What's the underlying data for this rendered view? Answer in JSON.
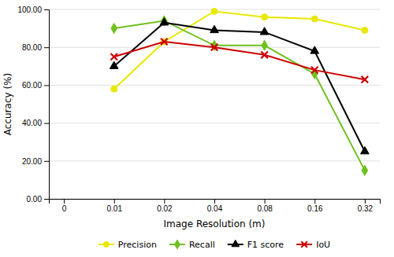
{
  "chart_data": {
    "type": "line",
    "xlabel": "Image Resolution (m)",
    "ylabel": "Accuracy (%)",
    "categories": [
      "0",
      "0.01",
      "0.02",
      "0.04",
      "0.08",
      "0.16",
      "0.32"
    ],
    "series": [
      {
        "name": "Precision",
        "color": "#e8e800",
        "marker": "circle",
        "values": [
          null,
          58,
          83,
          99,
          96,
          95,
          89
        ]
      },
      {
        "name": "Recall",
        "color": "#70c020",
        "marker": "diamond",
        "values": [
          null,
          90,
          94,
          81,
          81,
          66,
          15
        ]
      },
      {
        "name": "F1 score",
        "color": "#000000",
        "marker": "triangle",
        "values": [
          null,
          70,
          93,
          89,
          88,
          78,
          25
        ]
      },
      {
        "name": "IoU",
        "color": "#cc0000",
        "marker": "x",
        "values": [
          null,
          75,
          83,
          80,
          76,
          68,
          63
        ]
      }
    ],
    "ylim": [
      0,
      100
    ],
    "yticks": [
      {
        "value": 0,
        "label": "0.00"
      },
      {
        "value": 20,
        "label": "20.00"
      },
      {
        "value": 40,
        "label": "40.00"
      },
      {
        "value": 60,
        "label": "60.00"
      },
      {
        "value": 80,
        "label": "80.00"
      },
      {
        "value": 100,
        "label": "100.00"
      }
    ],
    "grid": true,
    "legend": "bottom"
  }
}
